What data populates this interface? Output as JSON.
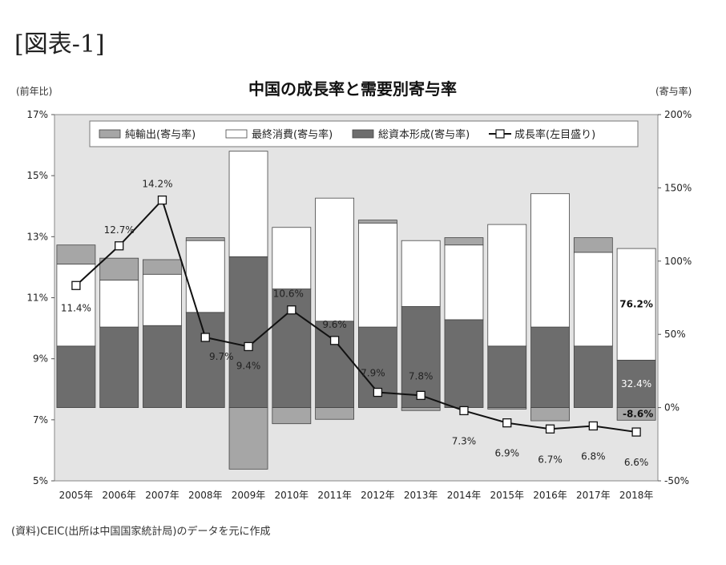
{
  "figure_label": "[図表-1]",
  "source_note": "(資料)CEIC(出所は中国国家統計局)のデータを元に作成",
  "chart_data": {
    "type": "bar",
    "title": "中国の成長率と需要別寄与率",
    "ylabel_left": "(前年比)",
    "ylabel_right": "(寄与率)",
    "categories": [
      "2005年",
      "2006年",
      "2007年",
      "2008年",
      "2009年",
      "2010年",
      "2011年",
      "2012年",
      "2013年",
      "2014年",
      "2015年",
      "2016年",
      "2017年",
      "2018年"
    ],
    "left_axis": {
      "ylim": [
        5,
        17
      ],
      "ticks": [
        "5%",
        "7%",
        "9%",
        "11%",
        "13%",
        "15%",
        "17%"
      ]
    },
    "right_axis": {
      "ylim": [
        -50,
        200
      ],
      "ticks": [
        "-50%",
        "0%",
        "50%",
        "100%",
        "150%",
        "200%"
      ]
    },
    "legend": [
      {
        "name": "純輸出(寄与率)",
        "color": "#a6a6a6",
        "kind": "bar"
      },
      {
        "name": "最終消費(寄与率)",
        "color": "#ffffff",
        "kind": "bar"
      },
      {
        "name": "総資本形成(寄与率)",
        "color": "#6d6d6d",
        "kind": "bar"
      },
      {
        "name": "成長率(左目盛り)",
        "color": "#111111",
        "kind": "line"
      }
    ],
    "series": [
      {
        "name": "総資本形成(寄与率)",
        "axis": "right",
        "values": [
          42,
          55,
          56,
          65,
          103,
          81,
          59,
          55,
          69,
          60,
          42,
          55,
          42,
          32.4
        ]
      },
      {
        "name": "最終消費(寄与率)",
        "axis": "right",
        "values": [
          56,
          32,
          35,
          49,
          72,
          42,
          84,
          71,
          45,
          51,
          83,
          91,
          64,
          76.2
        ]
      },
      {
        "name": "純輸出(寄与率)",
        "axis": "right",
        "values": [
          13,
          15,
          10,
          2,
          -42,
          -11,
          -8,
          2,
          -2,
          5,
          -1,
          -9,
          10,
          -8.6
        ]
      },
      {
        "name": "成長率(左目盛り)",
        "axis": "left",
        "values": [
          11.4,
          12.7,
          14.2,
          9.7,
          9.4,
          10.6,
          9.6,
          7.9,
          7.8,
          7.3,
          6.9,
          6.7,
          6.8,
          6.6
        ]
      }
    ],
    "growth_labels": [
      "11.4%",
      "12.7%",
      "14.2%",
      "9.7%",
      "9.4%",
      "10.6%",
      "9.6%",
      "7.9%",
      "7.8%",
      "7.3%",
      "6.9%",
      "6.7%",
      "6.8%",
      "6.6%"
    ],
    "annotations_2018": [
      "76.2%",
      "32.4%",
      "-8.6%"
    ]
  }
}
